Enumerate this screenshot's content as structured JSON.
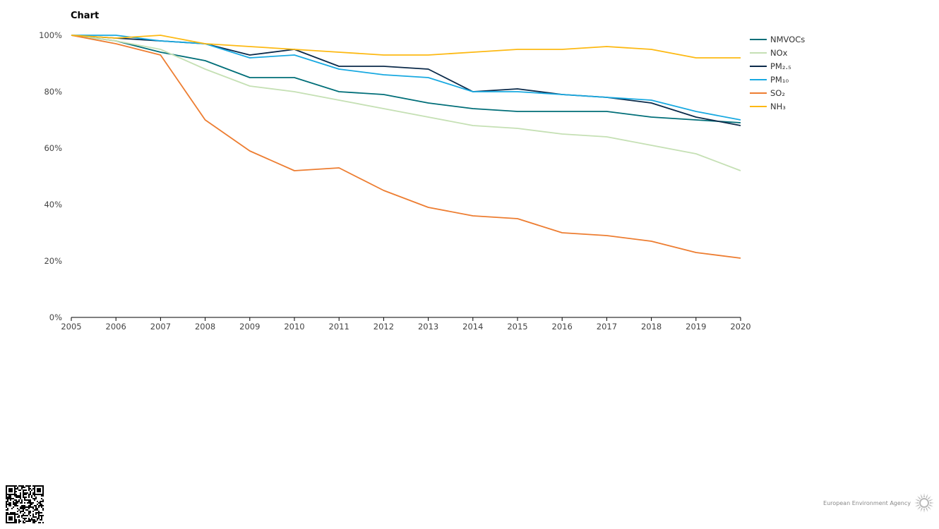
{
  "chart_data": {
    "type": "line",
    "title": "Chart",
    "x": [
      "2005",
      "2006",
      "2007",
      "2008",
      "2009",
      "2010",
      "2011",
      "2012",
      "2013",
      "2014",
      "2015",
      "2016",
      "2017",
      "2018",
      "2019",
      "2020"
    ],
    "ylim": [
      0,
      100
    ],
    "yticks": [
      "0%",
      "20%",
      "40%",
      "60%",
      "80%",
      "100%"
    ],
    "ytick_values": [
      0,
      20,
      40,
      60,
      80,
      100
    ],
    "grid": false,
    "legend_position": "right",
    "series": [
      {
        "name": "NMVOCs",
        "color": "#006E78",
        "values": [
          100,
          98,
          94,
          91,
          85,
          85,
          80,
          79,
          76,
          74,
          73,
          73,
          73,
          71,
          70,
          69
        ]
      },
      {
        "name": "NOx",
        "color": "#C5E0B4",
        "values": [
          100,
          98,
          95,
          88,
          82,
          80,
          77,
          74,
          71,
          68,
          67,
          65,
          64,
          61,
          58,
          52
        ]
      },
      {
        "name": "PM₂.₅",
        "color": "#0B2A4A",
        "values": [
          100,
          99,
          98,
          97,
          93,
          95,
          89,
          89,
          88,
          80,
          81,
          79,
          78,
          76,
          71,
          68
        ]
      },
      {
        "name": "PM₁₀",
        "color": "#18A9E1",
        "values": [
          100,
          100,
          98,
          97,
          92,
          93,
          88,
          86,
          85,
          80,
          80,
          79,
          78,
          77,
          73,
          70
        ]
      },
      {
        "name": "SO₂",
        "color": "#ED7D31",
        "values": [
          100,
          97,
          93,
          70,
          59,
          52,
          53,
          45,
          39,
          36,
          35,
          30,
          29,
          27,
          23,
          21
        ]
      },
      {
        "name": "NH₃",
        "color": "#FDB913",
        "values": [
          100,
          99,
          100,
          97,
          96,
          95,
          94,
          93,
          93,
          94,
          95,
          95,
          96,
          95,
          92,
          92
        ]
      }
    ]
  },
  "footer": {
    "org_name": "European Environment Agency"
  }
}
